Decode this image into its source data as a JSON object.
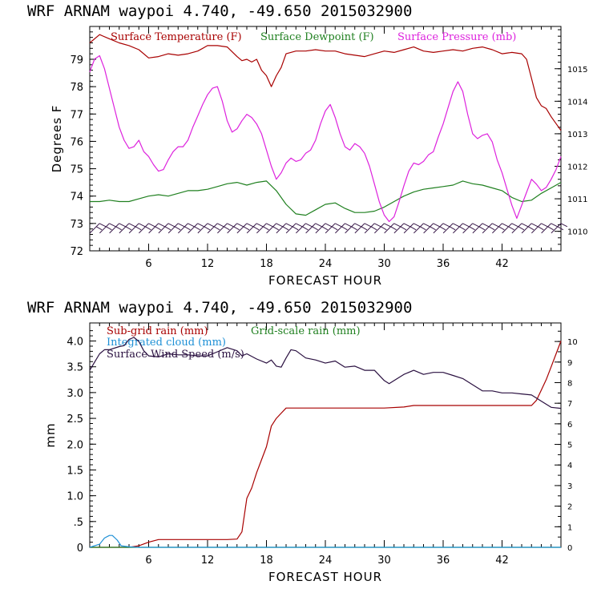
{
  "page": {
    "background": "#ffffff"
  },
  "chart_data": [
    {
      "type": "line",
      "title": "WRF   ARNAM waypoi   4.740, -49.650  2015032900",
      "xlabel": "FORECAST HOUR",
      "ylabel": "Degrees F",
      "y2label": "",
      "xlim": [
        0,
        48
      ],
      "ylim": [
        72,
        80.2
      ],
      "y2lim": [
        1009.4,
        1016.3
      ],
      "x_ticks": [
        "6",
        "12",
        "18",
        "24",
        "30",
        "36",
        "42"
      ],
      "y_ticks": [
        "72",
        "73",
        "74",
        "75",
        "76",
        "77",
        "78",
        "79"
      ],
      "y2_ticks": [
        "1010",
        "1011",
        "1012",
        "1013",
        "1014",
        "1015"
      ],
      "grid": false,
      "legend_position": "top",
      "series": [
        {
          "name": "Surface Temperature (F)",
          "color": "#a80000",
          "axis": "left",
          "x": [
            0,
            1,
            2,
            3,
            4,
            5,
            6,
            7,
            8,
            9,
            10,
            11,
            12,
            13,
            14,
            15,
            15.5,
            16,
            16.5,
            17,
            17.5,
            18,
            18.5,
            19,
            19.5,
            20,
            21,
            22,
            23,
            24,
            25,
            26,
            27,
            28,
            29,
            30,
            31,
            32,
            33,
            34,
            35,
            36,
            37,
            38,
            39,
            40,
            41,
            42,
            43,
            44,
            44.5,
            45,
            45.5,
            46,
            46.5,
            47,
            48
          ],
          "y": [
            79.6,
            79.9,
            79.75,
            79.6,
            79.5,
            79.35,
            79.05,
            79.1,
            79.2,
            79.15,
            79.2,
            79.3,
            79.5,
            79.5,
            79.45,
            79.1,
            78.95,
            79.0,
            78.9,
            79.0,
            78.6,
            78.4,
            78.0,
            78.4,
            78.7,
            79.2,
            79.3,
            79.3,
            79.35,
            79.3,
            79.3,
            79.2,
            79.15,
            79.1,
            79.2,
            79.3,
            79.25,
            79.35,
            79.45,
            79.3,
            79.25,
            79.3,
            79.35,
            79.3,
            79.4,
            79.45,
            79.35,
            79.2,
            79.25,
            79.2,
            79.0,
            78.3,
            77.6,
            77.3,
            77.2,
            76.9,
            76.4
          ]
        },
        {
          "name": "Surface Dewpoint (F)",
          "color": "#208020",
          "axis": "left",
          "x": [
            0,
            1,
            2,
            3,
            4,
            5,
            6,
            7,
            8,
            9,
            10,
            11,
            12,
            13,
            14,
            15,
            16,
            17,
            18,
            19,
            20,
            21,
            22,
            23,
            24,
            25,
            26,
            27,
            28,
            29,
            30,
            31,
            32,
            33,
            34,
            35,
            36,
            37,
            38,
            39,
            40,
            41,
            42,
            43,
            44,
            45,
            46,
            47,
            48
          ],
          "y": [
            73.8,
            73.8,
            73.85,
            73.8,
            73.8,
            73.9,
            74.0,
            74.05,
            74.0,
            74.1,
            74.2,
            74.2,
            74.25,
            74.35,
            74.45,
            74.5,
            74.4,
            74.5,
            74.55,
            74.2,
            73.7,
            73.35,
            73.3,
            73.5,
            73.7,
            73.75,
            73.55,
            73.4,
            73.4,
            73.45,
            73.6,
            73.8,
            74.0,
            74.15,
            74.25,
            74.3,
            74.35,
            74.4,
            74.55,
            74.45,
            74.4,
            74.3,
            74.2,
            73.95,
            73.8,
            73.85,
            74.1,
            74.3,
            74.5
          ]
        },
        {
          "name": "Surface Pressure (mb)",
          "color": "#dd22dd",
          "axis": "right",
          "x": [
            0,
            0.5,
            1,
            1.5,
            2,
            2.5,
            3,
            3.5,
            4,
            4.5,
            5,
            5.5,
            6,
            6.5,
            7,
            7.5,
            8,
            8.5,
            9,
            9.5,
            10,
            10.5,
            11,
            11.5,
            12,
            12.5,
            13,
            13.5,
            14,
            14.5,
            15,
            15.5,
            16,
            16.5,
            17,
            17.5,
            18,
            18.5,
            19,
            19.5,
            20,
            20.5,
            21,
            21.5,
            22,
            22.5,
            23,
            23.5,
            24,
            24.5,
            25,
            25.5,
            26,
            26.5,
            27,
            27.5,
            28,
            28.5,
            29,
            29.5,
            30,
            30.5,
            31,
            31.5,
            32,
            32.5,
            33,
            33.5,
            34,
            34.5,
            35,
            35.5,
            36,
            36.5,
            37,
            37.5,
            38,
            38.5,
            39,
            39.5,
            40,
            40.5,
            41,
            41.5,
            42,
            42.5,
            43,
            43.5,
            44,
            44.5,
            45,
            45.5,
            46,
            46.5,
            47,
            47.5,
            48
          ],
          "y": [
            1014.9,
            1015.3,
            1015.4,
            1015.0,
            1014.4,
            1013.8,
            1013.2,
            1012.8,
            1012.55,
            1012.6,
            1012.8,
            1012.45,
            1012.3,
            1012.05,
            1011.85,
            1011.9,
            1012.2,
            1012.45,
            1012.6,
            1012.6,
            1012.8,
            1013.2,
            1013.55,
            1013.9,
            1014.2,
            1014.4,
            1014.45,
            1014.0,
            1013.4,
            1013.05,
            1013.15,
            1013.4,
            1013.6,
            1013.5,
            1013.3,
            1013.0,
            1012.5,
            1012.0,
            1011.6,
            1011.8,
            1012.1,
            1012.25,
            1012.15,
            1012.2,
            1012.4,
            1012.5,
            1012.8,
            1013.3,
            1013.7,
            1013.9,
            1013.5,
            1013.0,
            1012.6,
            1012.5,
            1012.7,
            1012.6,
            1012.4,
            1012.0,
            1011.45,
            1010.9,
            1010.5,
            1010.3,
            1010.45,
            1010.9,
            1011.4,
            1011.85,
            1012.1,
            1012.05,
            1012.15,
            1012.35,
            1012.45,
            1012.9,
            1013.3,
            1013.8,
            1014.3,
            1014.6,
            1014.3,
            1013.6,
            1013.0,
            1012.85,
            1012.95,
            1013.0,
            1012.75,
            1012.2,
            1011.8,
            1011.3,
            1010.8,
            1010.4,
            1010.8,
            1011.2,
            1011.6,
            1011.45,
            1011.25,
            1011.35,
            1011.6,
            1011.9,
            1012.3
          ]
        }
      ],
      "wind_barbs": {
        "color": "#3a1a4a",
        "y_level": 73.0,
        "count": 48
      }
    },
    {
      "type": "line",
      "title": "WRF   ARNAM waypoi   4.740, -49.650  2015032900",
      "xlabel": "FORECAST HOUR",
      "ylabel": "mm",
      "y2label": "",
      "xlim": [
        0,
        48
      ],
      "ylim": [
        0,
        4.35
      ],
      "y2lim": [
        0,
        10.9
      ],
      "x_ticks": [
        "6",
        "12",
        "18",
        "24",
        "30",
        "36",
        "42"
      ],
      "y_ticks": [
        "0",
        ".5",
        "1.0",
        "1.5",
        "2.0",
        "2.5",
        "3.0",
        "3.5",
        "4.0"
      ],
      "y2_ticks": [
        "0",
        "1",
        "2",
        "3",
        "4",
        "5",
        "6",
        "7",
        "8",
        "9",
        "10"
      ],
      "grid": false,
      "legend_position": "top-left",
      "series": [
        {
          "name": "Sub-grid rain (mm)",
          "color": "#a80000",
          "axis": "left",
          "x": [
            0,
            4,
            5,
            6,
            7,
            8,
            9,
            10,
            11,
            12,
            13,
            14,
            15,
            15.5,
            16,
            16.5,
            17,
            17.5,
            18,
            18.5,
            19,
            19.5,
            20,
            20.5,
            21,
            22,
            24,
            26,
            28,
            30,
            32,
            33,
            34,
            36,
            38,
            40,
            42,
            44,
            45,
            45.5,
            46,
            46.5,
            47,
            47.5,
            48
          ],
          "y": [
            0,
            0,
            0.03,
            0.1,
            0.15,
            0.15,
            0.15,
            0.15,
            0.15,
            0.15,
            0.15,
            0.15,
            0.16,
            0.3,
            0.95,
            1.15,
            1.45,
            1.7,
            1.95,
            2.35,
            2.5,
            2.6,
            2.7,
            2.7,
            2.7,
            2.7,
            2.7,
            2.7,
            2.7,
            2.7,
            2.72,
            2.75,
            2.75,
            2.75,
            2.75,
            2.75,
            2.75,
            2.75,
            2.75,
            2.85,
            3.05,
            3.25,
            3.5,
            3.75,
            4.0
          ]
        },
        {
          "name": "Grid-scale rain (mm)",
          "color": "#208020",
          "axis": "left",
          "x": [
            0,
            48
          ],
          "y": [
            0,
            0
          ]
        },
        {
          "name": "Integrated cloud (mm)",
          "color": "#1e90d6",
          "axis": "left",
          "x": [
            0,
            1,
            1.5,
            2,
            2.3,
            2.8,
            3.2,
            4,
            5,
            48
          ],
          "y": [
            0,
            0.06,
            0.18,
            0.23,
            0.23,
            0.14,
            0.03,
            0.01,
            0,
            0
          ]
        },
        {
          "name": "Surface Wind Speed (m/s)",
          "color": "#2a1040",
          "axis": "right",
          "x": [
            0,
            0.5,
            1,
            1.5,
            2,
            3,
            3.5,
            4,
            4.5,
            5,
            5.5,
            6,
            7,
            8,
            9,
            10,
            11,
            12,
            13,
            14,
            15,
            15.5,
            16,
            17,
            18,
            18.5,
            19,
            19.5,
            20,
            20.5,
            21,
            22,
            23,
            24,
            25,
            26,
            27,
            28,
            29,
            30,
            30.5,
            31,
            32,
            33,
            34,
            35,
            36,
            37,
            38,
            39,
            40,
            41,
            42,
            43,
            44,
            45,
            46,
            47,
            48
          ],
          "y": [
            8.6,
            9.0,
            9.4,
            9.6,
            9.6,
            9.75,
            9.8,
            10.1,
            10.2,
            10.0,
            9.55,
            9.3,
            9.25,
            9.4,
            9.35,
            9.35,
            9.3,
            9.3,
            9.5,
            9.7,
            9.55,
            9.3,
            9.4,
            9.15,
            8.95,
            9.1,
            8.8,
            8.75,
            9.2,
            9.6,
            9.55,
            9.2,
            9.1,
            8.95,
            9.05,
            8.75,
            8.8,
            8.6,
            8.6,
            8.1,
            7.95,
            8.1,
            8.4,
            8.6,
            8.4,
            8.5,
            8.5,
            8.35,
            8.2,
            7.9,
            7.6,
            7.6,
            7.5,
            7.5,
            7.45,
            7.4,
            7.1,
            6.8,
            6.75
          ]
        }
      ]
    }
  ]
}
